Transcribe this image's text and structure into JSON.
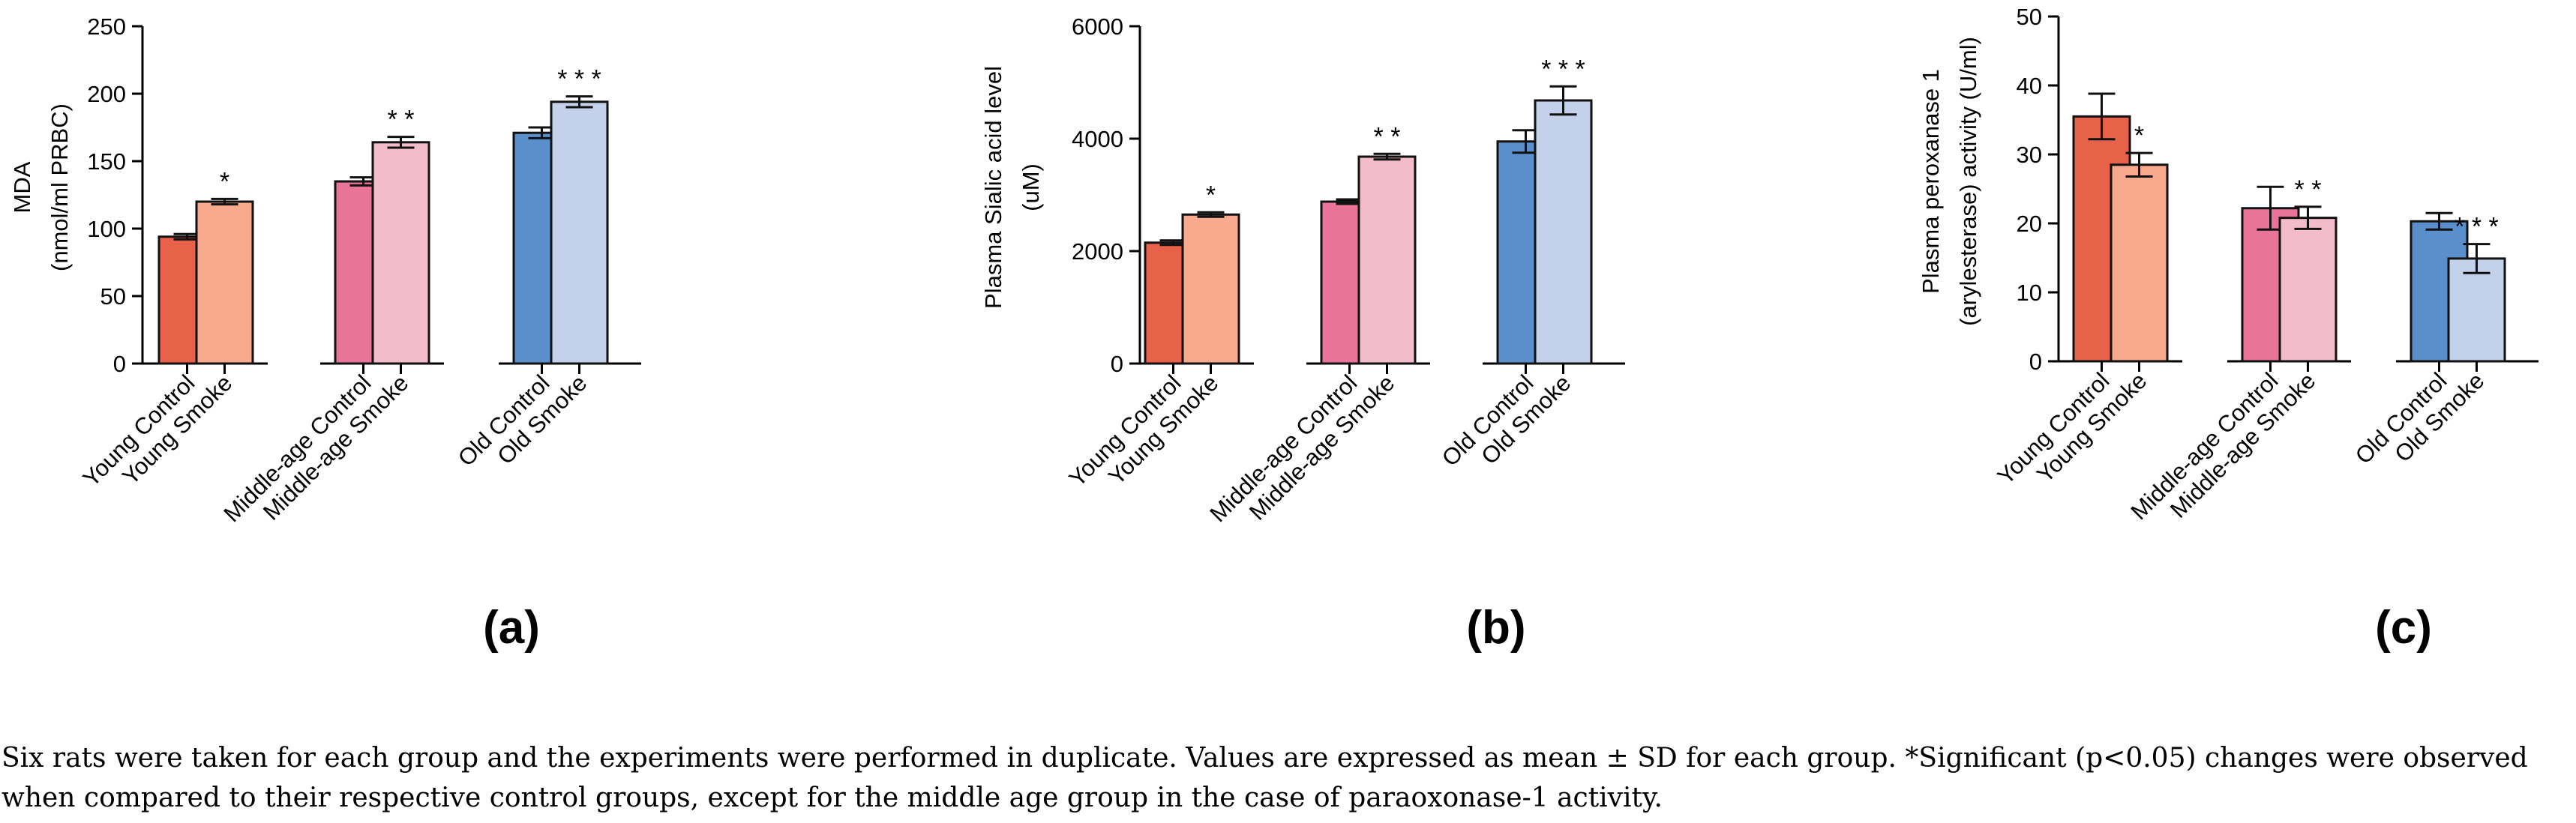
{
  "categories": [
    "Young Control",
    "Young Smoke",
    "Middle-age Control",
    "Middle-age Smoke",
    "Old Control",
    "Old Smoke"
  ],
  "colors": [
    "#e8624a",
    "#f8a98e",
    "#ea7399",
    "#f2bccb",
    "#5b8fcc",
    "#c3d1ea"
  ],
  "caption": "Six rats were taken for each group and the experiments were performed in duplicate. Values are expressed as mean ± SD for each group. *Significant (p<0.05) changes were observed when compared to their respective control groups, except for the middle age group in the case of paraoxonase-1 activity.",
  "chart_data": [
    {
      "type": "bar",
      "panel_label": "(a)",
      "ylabel_lines": [
        "MDA",
        "(nmol/ml PRBC)"
      ],
      "categories": [
        "Young Control",
        "Young Smoke",
        "Middle-age Control",
        "Middle-age Smoke",
        "Old Control",
        "Old Smoke"
      ],
      "values": [
        94,
        120,
        135,
        164,
        171,
        194
      ],
      "errors": [
        2,
        2,
        3,
        4,
        4,
        4
      ],
      "significance": [
        "",
        "*",
        "",
        "* *",
        "",
        "* * *"
      ],
      "ylim": [
        0,
        250
      ],
      "yticks": [
        "0",
        "50",
        "100",
        "150",
        "200",
        "250"
      ]
    },
    {
      "type": "bar",
      "panel_label": "(b)",
      "ylabel_lines": [
        "Plasma Sialic acid level",
        "(uM)"
      ],
      "categories": [
        "Young Control",
        "Young Smoke",
        "Middle-age Control",
        "Middle-age Smoke",
        "Old Control",
        "Old Smoke"
      ],
      "values": [
        2150,
        2650,
        2880,
        3680,
        3950,
        4680
      ],
      "errors": [
        40,
        40,
        40,
        50,
        200,
        250
      ],
      "significance": [
        "",
        "*",
        "",
        "* *",
        "",
        "* * *"
      ],
      "ylim": [
        0,
        6000
      ],
      "yticks": [
        "0",
        "2000",
        "4000",
        "6000"
      ]
    },
    {
      "type": "bar",
      "panel_label": "(c)",
      "ylabel_lines": [
        "Plasma peroxanase 1",
        "(arylesterase) activity (U/ml)"
      ],
      "categories": [
        "Young Control",
        "Young Smoke",
        "Middle-age Control",
        "Middle-age Smoke",
        "Old Control",
        "Old Smoke"
      ],
      "values": [
        35.5,
        28.5,
        22.2,
        20.8,
        20.3,
        14.9
      ],
      "errors": [
        3.3,
        1.7,
        3.1,
        1.6,
        1.2,
        2.1
      ],
      "significance": [
        "",
        "*",
        "",
        "* *",
        "",
        "* * *"
      ],
      "ylim": [
        0,
        50
      ],
      "yticks": [
        "0",
        "10",
        "20",
        "30",
        "40",
        "50"
      ]
    }
  ]
}
